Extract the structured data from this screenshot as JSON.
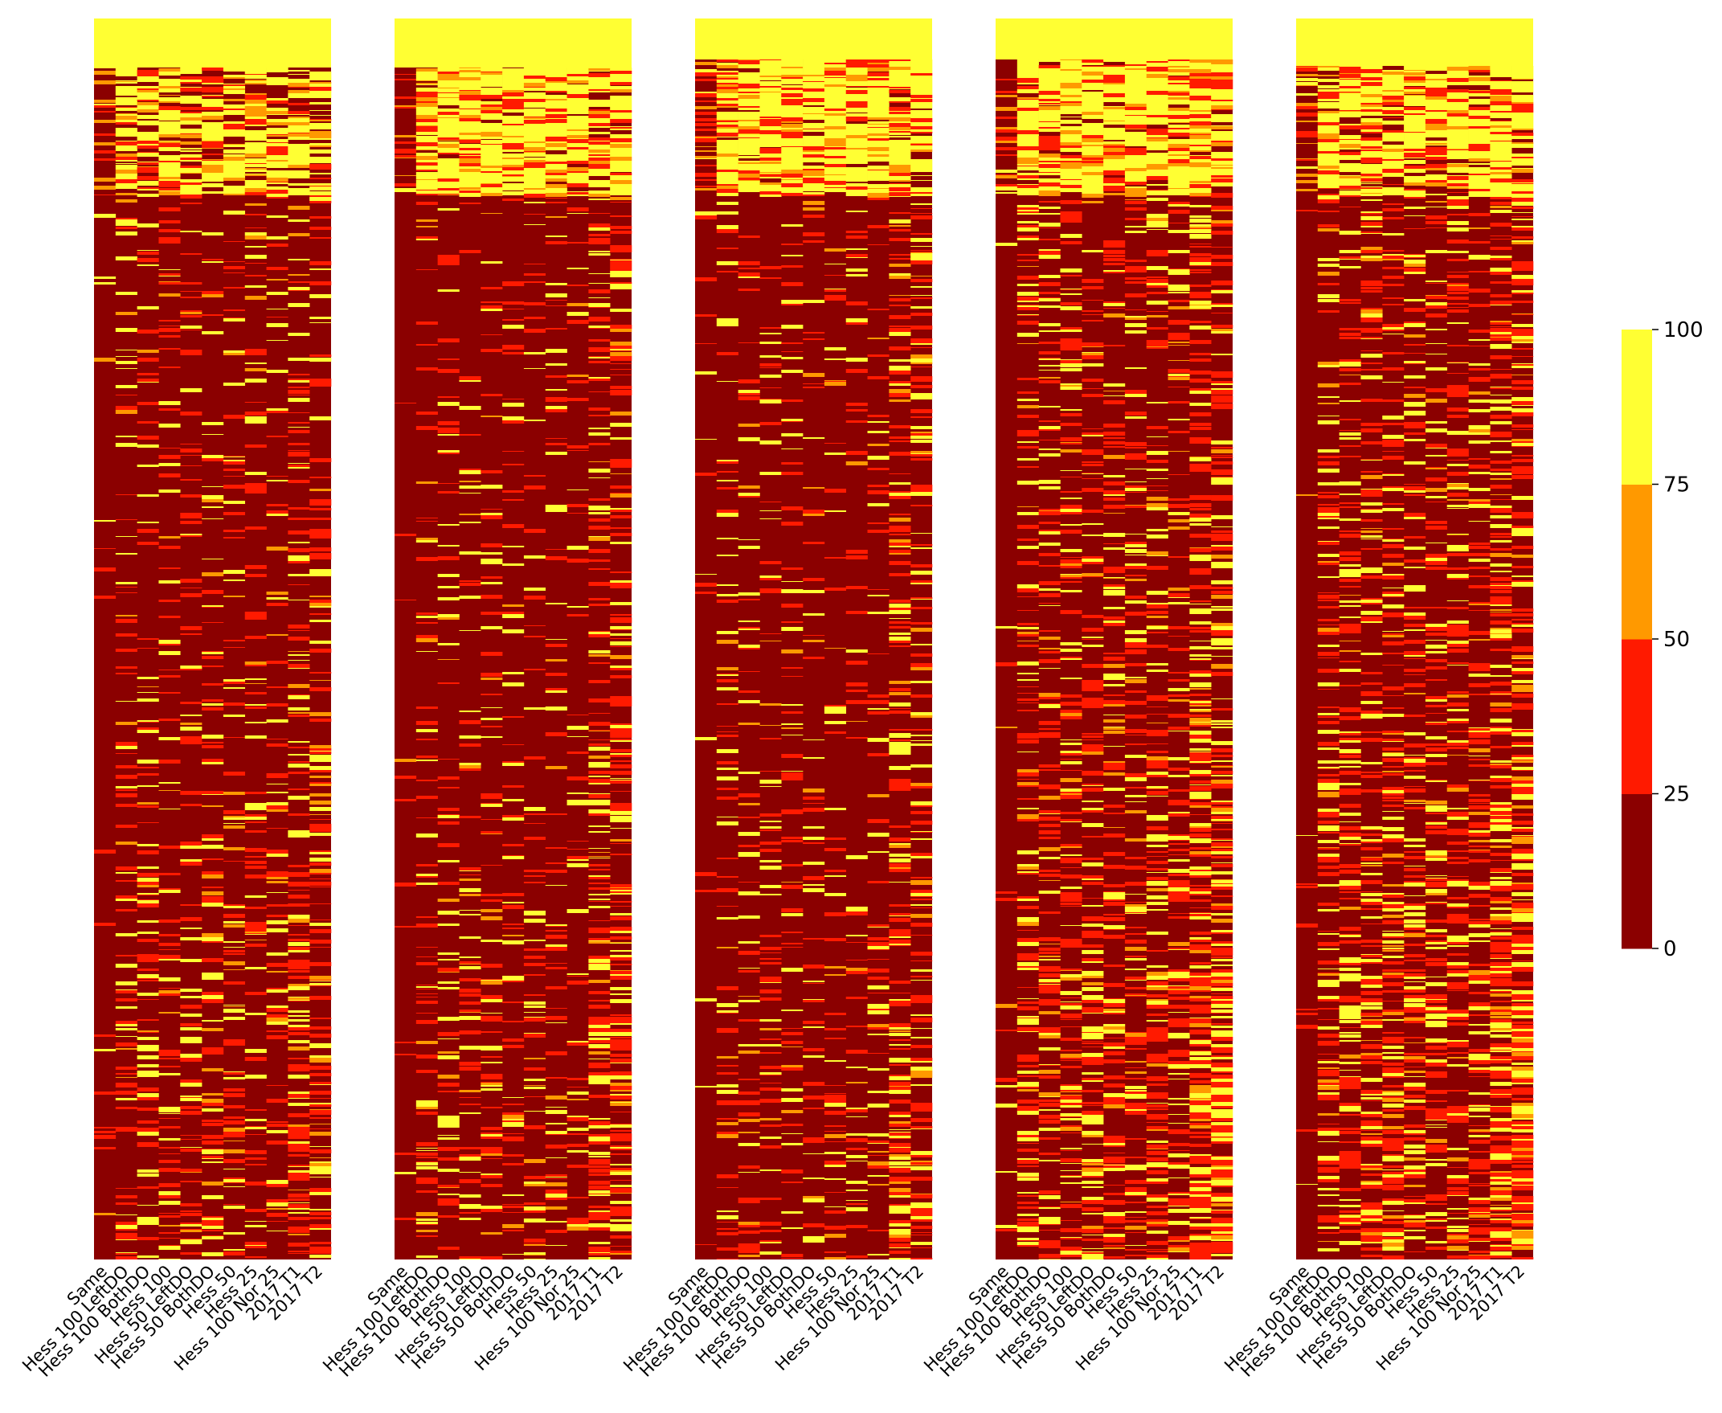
{
  "chart_data": {
    "type": "heatmap",
    "panels": 5,
    "columns": [
      "Same",
      "Hess 100 LeftDO",
      "Hess 100 BothDO",
      "Hess 100",
      "Hess 50 LeftDO",
      "Hess 50 BothDO",
      "Hess 50",
      "Hess 25",
      "Hess 100 Nor 25",
      "2017 T1",
      "2017 T2"
    ],
    "colorbar": {
      "ticks": [
        "0",
        "25",
        "50",
        "75",
        "100"
      ],
      "vmin": 0,
      "vmax": 100,
      "bins": [
        {
          "from": 0,
          "to": 25,
          "color": "#8B0000"
        },
        {
          "from": 25,
          "to": 50,
          "color": "#FF1A00"
        },
        {
          "from": 50,
          "to": 75,
          "color": "#FF9900"
        },
        {
          "from": 75,
          "to": 100,
          "color": "#FFFF33"
        }
      ]
    },
    "background_value": 0,
    "structure": [
      {
        "rows": "top band",
        "value": 100
      },
      {
        "rows": "upper block",
        "value": "mixed 75-100"
      },
      {
        "rows": "lower block",
        "value": "mostly 0-25 with scattered 25-100"
      }
    ]
  }
}
